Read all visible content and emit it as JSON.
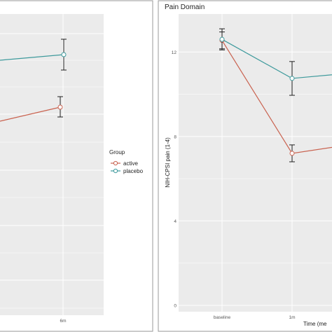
{
  "colors": {
    "active": "#c9624f",
    "placebo": "#3e9a9c",
    "panel_bg": "#ebebeb",
    "grid": "#ffffff",
    "errorbar": "#222222",
    "frame": "#999999"
  },
  "legend": {
    "title": "Group",
    "items": [
      {
        "key": "active",
        "label": "active"
      },
      {
        "key": "placebo",
        "label": "placebo"
      }
    ]
  },
  "chart_data": [
    {
      "type": "line",
      "title": "",
      "xlabel": "",
      "ylabel": "",
      "categories": [
        "6m"
      ],
      "series": [
        {
          "name": "active",
          "color_key": "active",
          "values": [
            null
          ]
        },
        {
          "name": "placebo",
          "color_key": "placebo",
          "values": [
            null
          ]
        }
      ],
      "grid": true
    },
    {
      "type": "line",
      "title": "Pain Domain",
      "xlabel": "Time (me",
      "ylabel": "NIH-CPSI pain (1-4)",
      "categories": [
        "baseline",
        "1m"
      ],
      "y_ticks": [
        "0",
        "4",
        "8",
        "12"
      ],
      "ylim": [
        -0.3,
        13.8
      ],
      "series": [
        {
          "name": "active",
          "color_key": "active",
          "values": [
            12.55,
            7.2
          ],
          "error": [
            0.4,
            0.4
          ],
          "continues_to": 7.7
        },
        {
          "name": "placebo",
          "color_key": "placebo",
          "values": [
            12.6,
            10.75
          ],
          "error": [
            0.5,
            0.8
          ],
          "continues_to": 11.05
        }
      ],
      "grid": true
    }
  ]
}
